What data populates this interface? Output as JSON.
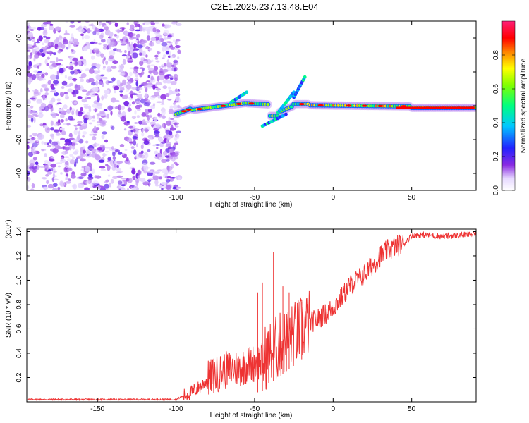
{
  "title": "C2E1.2025.237.13.48.E04",
  "chart_data": [
    {
      "type": "heatmap",
      "xlabel": "Height of straight line (km)",
      "ylabel": "Frequency (Hz)",
      "xlim": [
        -195,
        91
      ],
      "ylim": [
        -50,
        50
      ],
      "xticks": [
        "-150",
        "-100",
        "-50",
        "0",
        "50"
      ],
      "yticks": [
        "-40",
        "-20",
        "0",
        "20",
        "40"
      ],
      "colorbar": {
        "label": "Normalized spectral amplitude",
        "range": [
          0,
          1
        ],
        "ticks": [
          "0.0",
          "0.2",
          "0.4",
          "0.6",
          "0.8"
        ]
      },
      "description_regions": [
        {
          "x_range": [
            -195,
            -100
          ],
          "kind": "noise",
          "amplitude": [
            0.05,
            0.35
          ]
        },
        {
          "x_range": [
            -100,
            91
          ],
          "kind": "narrowband-line",
          "center_freq_hz": [
            -3,
            1
          ],
          "peak_amplitude": 1.0
        }
      ]
    },
    {
      "type": "line",
      "xlabel": "Height of straight line (km)",
      "ylabel": "SNR (10 * v/v)",
      "multiplier_label": "(x10⁴)",
      "xlim": [
        -195,
        91
      ],
      "ylim": [
        0,
        1.42
      ],
      "xticks": [
        "-150",
        "-100",
        "-50",
        "0",
        "50"
      ],
      "yticks": [
        "0.2",
        "0.4",
        "0.6",
        "0.8",
        "1.0",
        "1.2",
        "1.4"
      ],
      "series": [
        {
          "name": "SNR",
          "color": "#ee3333",
          "x": [
            -195,
            -150,
            -100,
            -95,
            -90,
            -85,
            -80,
            -75,
            -70,
            -65,
            -60,
            -55,
            -50,
            -45,
            -40,
            -35,
            -30,
            -25,
            -20,
            -15,
            -10,
            -5,
            0,
            5,
            10,
            15,
            20,
            25,
            30,
            35,
            40,
            45,
            50,
            60,
            70,
            80,
            91
          ],
          "y": [
            0.02,
            0.02,
            0.02,
            0.05,
            0.08,
            0.12,
            0.18,
            0.22,
            0.25,
            0.27,
            0.28,
            0.3,
            0.32,
            0.34,
            0.4,
            0.45,
            0.5,
            0.55,
            0.6,
            0.65,
            0.68,
            0.72,
            0.78,
            0.85,
            0.95,
            1.0,
            1.05,
            1.12,
            1.2,
            1.25,
            1.28,
            1.3,
            1.37,
            1.37,
            1.36,
            1.37,
            1.38
          ]
        }
      ]
    }
  ]
}
